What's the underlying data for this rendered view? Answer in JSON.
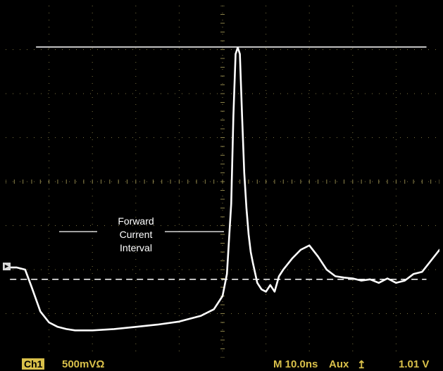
{
  "colors": {
    "trace": "#ffffff",
    "grid": "#9a8f50",
    "status_text": "#d9c04a",
    "background": "#000000"
  },
  "annotation": {
    "line1": "Forward",
    "line2": "Current",
    "line3": "Interval"
  },
  "status": {
    "channel": "Ch1",
    "scale": "500mVΩ",
    "timebase": "M 10.0ns",
    "trigger_source": "Aux",
    "trigger_icon": "rising-edge-icon",
    "trigger_level": "1.01 V"
  },
  "ground_marker": {
    "icon": "arrow-right-icon"
  },
  "chart_data": {
    "type": "line",
    "title": "",
    "xlabel": "",
    "ylabel": "",
    "grid": true,
    "divisions": {
      "x": 10,
      "y": 8
    },
    "xlim": [
      0,
      10
    ],
    "ylim": [
      -4,
      4
    ],
    "reference_lines": [
      {
        "style": "solid",
        "y": 3.06,
        "x_start": 0.7,
        "x_end": 9.7
      },
      {
        "style": "dashed",
        "y": -2.22,
        "x_start": 0.1,
        "x_end": 9.7
      }
    ],
    "series": [
      {
        "x": [
          0.0,
          0.25,
          0.45,
          0.6,
          0.8,
          1.0,
          1.2,
          1.4,
          1.6,
          2.0,
          2.5,
          3.0,
          3.5,
          4.0,
          4.5,
          4.8,
          5.0,
          5.1,
          5.2,
          5.25,
          5.3,
          5.35,
          5.4,
          5.45,
          5.5,
          5.55,
          5.6,
          5.65,
          5.7,
          5.8,
          5.9,
          6.0,
          6.1,
          6.2,
          6.3,
          6.4,
          6.6,
          6.8,
          7.0,
          7.2,
          7.4,
          7.6,
          7.8,
          8.0,
          8.2,
          8.4,
          8.6,
          8.8,
          9.0,
          9.2,
          9.4,
          9.6,
          9.8,
          10.0
        ],
        "y": [
          -1.95,
          -1.95,
          -2.0,
          -2.4,
          -2.95,
          -3.2,
          -3.3,
          -3.35,
          -3.38,
          -3.38,
          -3.35,
          -3.3,
          -3.25,
          -3.18,
          -3.05,
          -2.9,
          -2.6,
          -2.1,
          -0.5,
          1.5,
          2.9,
          3.05,
          2.9,
          1.5,
          0.2,
          -0.6,
          -1.2,
          -1.6,
          -1.85,
          -2.3,
          -2.45,
          -2.5,
          -2.35,
          -2.5,
          -2.15,
          -2.0,
          -1.75,
          -1.55,
          -1.45,
          -1.7,
          -2.0,
          -2.15,
          -2.18,
          -2.2,
          -2.25,
          -2.22,
          -2.3,
          -2.2,
          -2.3,
          -2.25,
          -2.1,
          -2.05,
          -1.8,
          -1.55
        ]
      }
    ]
  }
}
